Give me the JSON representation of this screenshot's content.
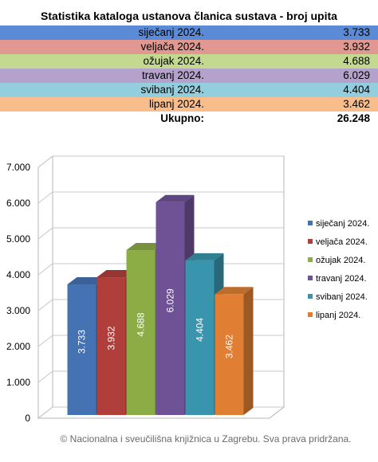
{
  "table": {
    "title": "Statistika kataloga ustanova članica sustava - broj upita",
    "rows": [
      {
        "label": "siječanj 2024.",
        "value": "3.733",
        "color": "#5b8bd6"
      },
      {
        "label": "veljača 2024.",
        "value": "3.932",
        "color": "#e09890"
      },
      {
        "label": "ožujak 2024.",
        "value": "4.688",
        "color": "#c3d98f"
      },
      {
        "label": "travanj 2024.",
        "value": "6.029",
        "color": "#b4a2cc"
      },
      {
        "label": "svibanj 2024.",
        "value": "4.404",
        "color": "#93cede"
      },
      {
        "label": "lipanj 2024.",
        "value": "3.462",
        "color": "#f8bd8b"
      }
    ],
    "total_label": "Ukupno:",
    "total_value": "26.248"
  },
  "chart_data": {
    "type": "bar",
    "categories": [
      "siječanj 2024.",
      "veljača 2024.",
      "ožujak 2024.",
      "travanj 2024.",
      "svibanj 2024.",
      "lipanj 2024."
    ],
    "values": [
      3733,
      3932,
      4688,
      6029,
      4404,
      3462
    ],
    "value_labels": [
      "3.733",
      "3.932",
      "4.688",
      "6.029",
      "4.404",
      "3.462"
    ],
    "colors": [
      "#4472b3",
      "#b03e3b",
      "#8cac46",
      "#6f5296",
      "#3995ad",
      "#e07f34"
    ],
    "yticks": [
      "0",
      "1.000",
      "2.000",
      "3.000",
      "4.000",
      "5.000",
      "6.000",
      "7.000"
    ],
    "ylim": [
      0,
      7000
    ],
    "grid": true,
    "legend": "right"
  },
  "footer": "© Nacionalna i sveučilišna knjižnica u Zagrebu. Sva prava pridržana."
}
